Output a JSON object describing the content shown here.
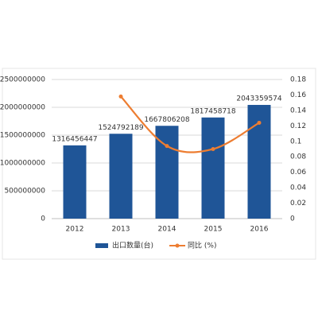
{
  "chart_data": {
    "type": "bar",
    "categories": [
      "2012",
      "2013",
      "2014",
      "2015",
      "2016"
    ],
    "series": [
      {
        "name": "出口数量(台)",
        "type": "bar",
        "color": "#1f5597",
        "axis": "y",
        "values": [
          1316456447,
          1524792189,
          1667806208,
          1817458718,
          2043359574
        ]
      },
      {
        "name": "同比 (%)",
        "type": "line",
        "color": "#ed7d31",
        "axis": "y2",
        "smooth": true,
        "values": [
          null,
          0.158,
          0.094,
          0.09,
          0.124
        ]
      }
    ],
    "ylim": [
      0,
      2500000000
    ],
    "yticks": [
      0,
      500000000,
      1000000000,
      1500000000,
      2000000000,
      2500000000
    ],
    "y2lim": [
      0,
      0.18
    ],
    "y2ticks": [
      0,
      0.02,
      0.04,
      0.06,
      0.08,
      0.1,
      0.12,
      0.14,
      0.16,
      0.18
    ],
    "grid": true,
    "data_labels": true,
    "legend": "bottom"
  }
}
